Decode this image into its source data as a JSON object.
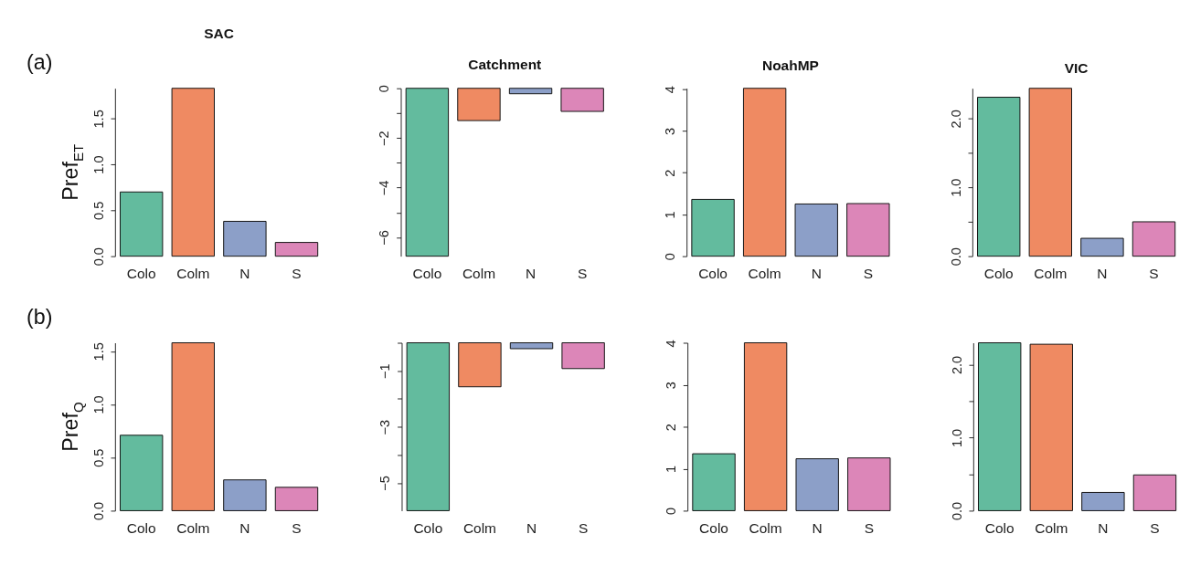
{
  "chart_data": [
    {
      "type": "bar",
      "title": "SAC",
      "ylabel": "Pref$_{ET}$",
      "annotations": [
        "(a)"
      ],
      "categories": [
        "Colo",
        "Colm",
        "N",
        "S"
      ],
      "values": [
        0.7,
        1.83,
        0.38,
        0.15
      ],
      "colors": [
        "#63bb9e",
        "#ef8a62",
        "#8c9fc8",
        "#dc86b8"
      ],
      "ylim": [
        0,
        1.83
      ],
      "yticks": [
        {
          "value": 0,
          "label": "0.0"
        },
        {
          "value": 0.5,
          "label": "0.5"
        },
        {
          "value": 1,
          "label": "1.0"
        },
        {
          "value": 1.5,
          "label": "1.5"
        }
      ]
    },
    {
      "type": "bar",
      "title": "Catchment",
      "categories": [
        "Colo",
        "Colm",
        "N",
        "S"
      ],
      "values": [
        -6.76,
        -1.3,
        -0.22,
        -0.93
      ],
      "colors": [
        "#63bb9e",
        "#ef8a62",
        "#8c9fc8",
        "#dc86b8"
      ],
      "ylim": [
        -6.76,
        0
      ],
      "yticks": [
        0,
        {
          "value": -1,
          "label": null
        },
        -2,
        {
          "value": -3,
          "label": null
        },
        -4,
        {
          "value": -5,
          "label": null
        },
        -6
      ]
    },
    {
      "type": "bar",
      "title": "NoahMP",
      "categories": [
        "Colo",
        "Colm",
        "N",
        "S"
      ],
      "values": [
        1.36,
        4.02,
        1.25,
        1.26
      ],
      "colors": [
        "#63bb9e",
        "#ef8a62",
        "#8c9fc8",
        "#dc86b8"
      ],
      "ylim": [
        0,
        4.02
      ],
      "yticks": [
        0,
        1,
        2,
        3,
        4
      ]
    },
    {
      "type": "bar",
      "title": "VIC",
      "categories": [
        "Colo",
        "Colm",
        "N",
        "S"
      ],
      "values": [
        2.31,
        2.44,
        0.26,
        0.5
      ],
      "colors": [
        "#63bb9e",
        "#ef8a62",
        "#8c9fc8",
        "#dc86b8"
      ],
      "ylim": [
        0,
        2.44
      ],
      "yticks": [
        {
          "value": 0,
          "label": "0.0"
        },
        {
          "value": 0.5,
          "label": null
        },
        {
          "value": 1,
          "label": "1.0"
        },
        {
          "value": 1.5,
          "label": null
        },
        {
          "value": 2,
          "label": "2.0"
        }
      ]
    },
    {
      "type": "bar",
      "ylabel": "Pref$_{Q}$",
      "annotations": [
        "(b)"
      ],
      "categories": [
        "Colo",
        "Colm",
        "N",
        "S"
      ],
      "values": [
        0.71,
        1.58,
        0.29,
        0.22
      ],
      "colors": [
        "#63bb9e",
        "#ef8a62",
        "#8c9fc8",
        "#dc86b8"
      ],
      "ylim": [
        0,
        1.58
      ],
      "yticks": [
        {
          "value": 0,
          "label": "0.0"
        },
        {
          "value": 0.5,
          "label": "0.5"
        },
        {
          "value": 1,
          "label": "1.0"
        },
        {
          "value": 1.5,
          "label": "1.5"
        }
      ]
    },
    {
      "type": "bar",
      "categories": [
        "Colo",
        "Colm",
        "N",
        "S"
      ],
      "values": [
        -5.99,
        -1.57,
        -0.21,
        -0.92
      ],
      "colors": [
        "#63bb9e",
        "#ef8a62",
        "#8c9fc8",
        "#dc86b8"
      ],
      "ylim": [
        -5.99,
        0
      ],
      "yticks": [
        {
          "value": 0,
          "label": null
        },
        -1,
        {
          "value": -2,
          "label": null
        },
        -3,
        {
          "value": -4,
          "label": null
        },
        -5
      ]
    },
    {
      "type": "bar",
      "categories": [
        "Colo",
        "Colm",
        "N",
        "S"
      ],
      "values": [
        1.36,
        4.01,
        1.24,
        1.26
      ],
      "colors": [
        "#63bb9e",
        "#ef8a62",
        "#8c9fc8",
        "#dc86b8"
      ],
      "ylim": [
        0,
        4.01
      ],
      "yticks": [
        0,
        1,
        2,
        3,
        4
      ]
    },
    {
      "type": "bar",
      "categories": [
        "Colo",
        "Colm",
        "N",
        "S"
      ],
      "values": [
        2.3,
        2.28,
        0.25,
        0.49
      ],
      "colors": [
        "#63bb9e",
        "#ef8a62",
        "#8c9fc8",
        "#dc86b8"
      ],
      "ylim": [
        0,
        2.3
      ],
      "yticks": [
        {
          "value": 0,
          "label": "0.0"
        },
        {
          "value": 0.5,
          "label": null
        },
        {
          "value": 1,
          "label": "1.0"
        },
        {
          "value": 1.5,
          "label": null
        },
        {
          "value": 2,
          "label": "2.0"
        }
      ]
    }
  ]
}
